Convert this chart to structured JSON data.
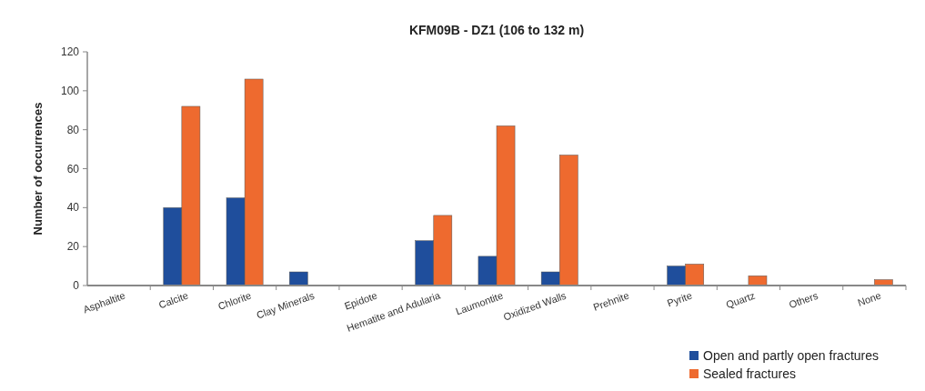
{
  "chart_data": {
    "type": "bar",
    "title": "KFM09B - DZ1 (106 to 132 m)",
    "ylabel": "Number of occurrences",
    "categories": [
      "Asphaltite",
      "Calcite",
      "Chlorite",
      "Clay Minerals",
      "Epidote",
      "Hematite and Adularia",
      "Laumontite",
      "Oxidized Walls",
      "Prehnite",
      "Pyrite",
      "Quartz",
      "Others",
      "None"
    ],
    "series": [
      {
        "name": "Open and partly open fractures",
        "color": "#1f4e9c",
        "values": [
          0,
          40,
          45,
          7,
          0,
          23,
          15,
          7,
          0,
          10,
          0,
          0,
          0
        ]
      },
      {
        "name": "Sealed fractures",
        "color": "#ee6a2f",
        "values": [
          0,
          92,
          106,
          0,
          0,
          36,
          82,
          67,
          0,
          11,
          5,
          0,
          3
        ]
      }
    ],
    "ylim": [
      0,
      120
    ],
    "yticks": [
      0,
      20,
      40,
      60,
      80,
      100,
      120
    ],
    "grid": false,
    "legend": "bottom right"
  }
}
